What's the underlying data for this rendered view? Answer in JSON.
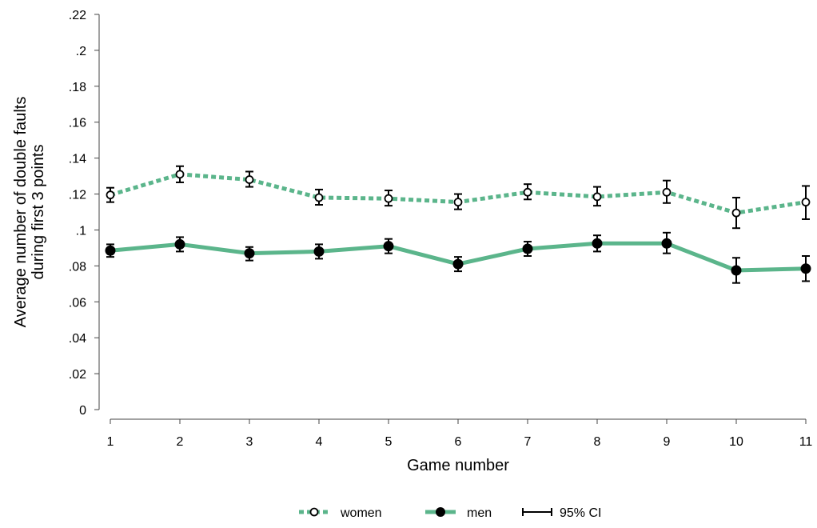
{
  "chart_data": {
    "type": "line",
    "title": "",
    "xlabel": "Game number",
    "ylabel_lines": [
      "Average number of double faults",
      "during first 3 points"
    ],
    "x": [
      1,
      2,
      3,
      4,
      5,
      6,
      7,
      8,
      9,
      10,
      11
    ],
    "xlim": [
      1,
      11
    ],
    "ylim": [
      0,
      0.22
    ],
    "y_ticks": [
      0,
      0.02,
      0.04,
      0.06,
      0.08,
      0.1,
      0.12,
      0.14,
      0.16,
      0.18,
      0.2,
      0.22
    ],
    "y_tick_labels": [
      "0",
      ".02",
      ".04",
      ".06",
      ".08",
      ".1",
      ".12",
      ".14",
      ".16",
      ".18",
      ".2",
      ".22"
    ],
    "x_tick_labels": [
      "1",
      "2",
      "3",
      "4",
      "5",
      "6",
      "7",
      "8",
      "9",
      "10",
      "11"
    ],
    "grid": false,
    "legend_position": "bottom",
    "line_color": "#5bb58b",
    "series": [
      {
        "name": "women",
        "line_style": "dotted",
        "marker": "hollow-circle",
        "values": [
          0.1195,
          0.131,
          0.128,
          0.118,
          0.1175,
          0.1155,
          0.121,
          0.1185,
          0.121,
          0.1095,
          0.1155
        ],
        "ci_low": [
          0.1155,
          0.1265,
          0.124,
          0.114,
          0.1135,
          0.1115,
          0.117,
          0.1135,
          0.115,
          0.101,
          0.106
        ],
        "ci_high": [
          0.1235,
          0.1355,
          0.1325,
          0.1225,
          0.122,
          0.12,
          0.1255,
          0.124,
          0.1275,
          0.118,
          0.1245
        ]
      },
      {
        "name": "men",
        "line_style": "solid",
        "marker": "filled-circle",
        "values": [
          0.0885,
          0.092,
          0.087,
          0.088,
          0.091,
          0.081,
          0.0895,
          0.0925,
          0.0925,
          0.0775,
          0.0785
        ],
        "ci_low": [
          0.085,
          0.088,
          0.083,
          0.084,
          0.087,
          0.077,
          0.0855,
          0.088,
          0.087,
          0.0705,
          0.0715
        ],
        "ci_high": [
          0.092,
          0.096,
          0.0905,
          0.092,
          0.095,
          0.085,
          0.0935,
          0.097,
          0.0985,
          0.0845,
          0.0855
        ]
      }
    ],
    "legend": [
      {
        "label": "women",
        "type": "women"
      },
      {
        "label": "men",
        "type": "men"
      },
      {
        "label": "95% CI",
        "type": "ci"
      }
    ]
  }
}
